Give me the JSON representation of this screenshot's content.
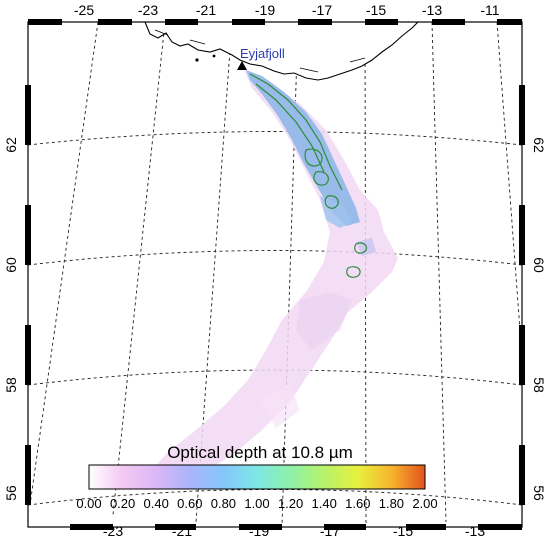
{
  "map": {
    "place_label": "Eyjafjoll",
    "place_label_color": "#2a3db0",
    "volcano_marker": "triangle-marker",
    "lon_top_labels": [
      "-25",
      "-23",
      "-21",
      "-19",
      "-17",
      "-15",
      "-13",
      "-11"
    ],
    "lon_bottom_labels": [
      "-23",
      "-21",
      "-19",
      "-17",
      "-15",
      "-13"
    ],
    "lat_labels": [
      "56",
      "58",
      "60",
      "62"
    ],
    "frame_color": "#000000",
    "grid_style": "dashed",
    "coastline": "Iceland south coast"
  },
  "plume": {
    "high_color": "#8fb7e8",
    "low_color": "#f1d8f3",
    "contour_color": "#2e8b3a"
  },
  "colorbar": {
    "title_prefix": "Optical depth at 10.8 ",
    "title_unit": "µm",
    "tick_labels": [
      "0.00",
      "0.20",
      "0.40",
      "0.60",
      "0.80",
      "1.00",
      "1.20",
      "1.40",
      "1.60",
      "1.80",
      "2.00"
    ],
    "range": [
      0,
      2
    ],
    "gradient_colors": [
      "#ffffff",
      "#f3c9f2",
      "#dcb7f6",
      "#aab4fb",
      "#86c6fb",
      "#7ee7e6",
      "#8ef0a8",
      "#b5f36b",
      "#e7f03e",
      "#f7b52e",
      "#e2521c"
    ]
  }
}
